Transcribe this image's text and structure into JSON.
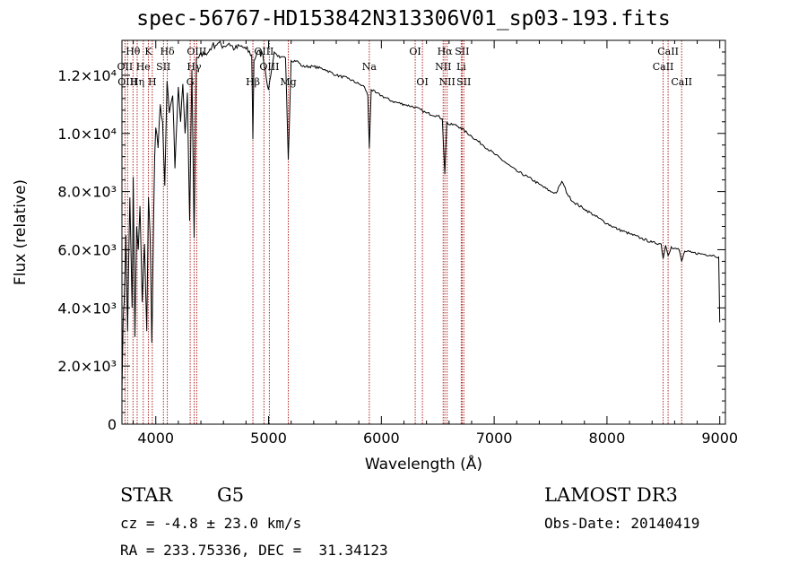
{
  "title": "spec-56767-HD153842N313306V01_sp03-193.fits",
  "info": {
    "class": "STAR",
    "subclass": "G5",
    "survey": "LAMOST DR3",
    "cz": "cz = -4.8 ± 23.0 km/s",
    "obs_date": "Obs-Date: 20140419",
    "radec": "RA = 233.75336, DEC =  31.34123"
  },
  "colors": {
    "line_marker": "#b22222",
    "spectrum": "#000000",
    "axis": "#000000"
  },
  "chart_data": {
    "type": "line",
    "title": "spec-56767-HD153842N313306V01_sp03-193.fits",
    "xlabel": "Wavelength (Å)",
    "ylabel": "Flux (relative)",
    "xlim": [
      3700,
      9050
    ],
    "ylim": [
      0,
      13200
    ],
    "x_ticks": [
      4000,
      5000,
      6000,
      7000,
      8000,
      9000
    ],
    "y_ticks": [
      {
        "value": 0,
        "label": "0"
      },
      {
        "value": 2000,
        "label": "2.0×10³"
      },
      {
        "value": 4000,
        "label": "4.0×10³"
      },
      {
        "value": 6000,
        "label": "6.0×10³"
      },
      {
        "value": 8000,
        "label": "8.0×10³"
      },
      {
        "value": 10000,
        "label": "1.0×10⁴"
      },
      {
        "value": 12000,
        "label": "1.2×10⁴"
      }
    ],
    "series": [
      {
        "name": "spectrum",
        "x": [
          3700,
          3710,
          3720,
          3735,
          3750,
          3770,
          3790,
          3800,
          3815,
          3830,
          3845,
          3860,
          3880,
          3900,
          3920,
          3935,
          3950,
          3965,
          3975,
          3990,
          4000,
          4020,
          4040,
          4060,
          4080,
          4100,
          4120,
          4150,
          4170,
          4200,
          4220,
          4240,
          4260,
          4280,
          4300,
          4320,
          4340,
          4360,
          4380,
          4420,
          4450,
          4480,
          4500,
          4550,
          4600,
          4650,
          4700,
          4750,
          4800,
          4850,
          4861,
          4870,
          4900,
          4950,
          5000,
          5050,
          5100,
          5150,
          5175,
          5200,
          5250,
          5300,
          5400,
          5500,
          5600,
          5700,
          5800,
          5850,
          5880,
          5893,
          5910,
          5950,
          6000,
          6100,
          6200,
          6300,
          6400,
          6500,
          6540,
          6563,
          6580,
          6600,
          6650,
          6700,
          6800,
          6900,
          7000,
          7100,
          7200,
          7300,
          7400,
          7500,
          7550,
          7600,
          7620,
          7650,
          7700,
          7800,
          7900,
          8000,
          8100,
          8200,
          8300,
          8400,
          8480,
          8498,
          8520,
          8542,
          8570,
          8600,
          8640,
          8662,
          8690,
          8750,
          8850,
          8950,
          8990,
          9000
        ],
        "y": [
          1100,
          3500,
          4200,
          6500,
          3200,
          7800,
          4000,
          8500,
          3000,
          6800,
          6000,
          7500,
          4200,
          6200,
          3200,
          7800,
          6500,
          2800,
          5500,
          9200,
          10200,
          9500,
          11000,
          10400,
          8200,
          11800,
          10700,
          11300,
          8800,
          11600,
          10400,
          11700,
          10000,
          11400,
          7000,
          12200,
          6400,
          12600,
          12600,
          12800,
          12700,
          12900,
          13000,
          13100,
          13000,
          13100,
          12900,
          13000,
          12900,
          12700,
          9800,
          12500,
          12800,
          12700,
          11500,
          12800,
          12600,
          12600,
          9100,
          12500,
          12500,
          12300,
          12300,
          12200,
          12000,
          11900,
          11700,
          11600,
          11300,
          9500,
          11500,
          11400,
          11300,
          11100,
          11000,
          10900,
          10700,
          10600,
          10500,
          8600,
          10400,
          10300,
          10300,
          10200,
          9900,
          9600,
          9300,
          9000,
          8700,
          8500,
          8250,
          8000,
          7950,
          8350,
          8200,
          7900,
          7650,
          7400,
          7150,
          6900,
          6700,
          6550,
          6400,
          6250,
          6200,
          5700,
          6150,
          5800,
          6100,
          6050,
          6000,
          5600,
          5950,
          5900,
          5850,
          5800,
          5750,
          3500
        ]
      }
    ],
    "emission_lines": [
      {
        "name": "Hθ",
        "wavelength": 3798,
        "row": 0
      },
      {
        "name": "OII",
        "wavelength": 3727,
        "row": 1
      },
      {
        "name": "OIII",
        "wavelength": 3750,
        "row": 2
      },
      {
        "name": "He",
        "wavelength": 3889,
        "row": 1
      },
      {
        "name": "Hη",
        "wavelength": 3835,
        "row": 2
      },
      {
        "name": "K",
        "wavelength": 3934,
        "row": 0
      },
      {
        "name": "H",
        "wavelength": 3969,
        "row": 2
      },
      {
        "name": "SII",
        "wavelength": 4068,
        "row": 1
      },
      {
        "name": "Hδ",
        "wavelength": 4102,
        "row": 0
      },
      {
        "name": "OIII",
        "wavelength": 4363,
        "row": 0
      },
      {
        "name": "Hγ",
        "wavelength": 4340,
        "row": 1
      },
      {
        "name": "G",
        "wavelength": 4305,
        "row": 2
      },
      {
        "name": "OIII",
        "wavelength": 4959,
        "row": 0
      },
      {
        "name": "Hβ",
        "wavelength": 4861,
        "row": 2
      },
      {
        "name": "OIII",
        "wavelength": 5007,
        "row": 1
      },
      {
        "name": "Mg",
        "wavelength": 5175,
        "row": 2
      },
      {
        "name": "Na",
        "wavelength": 5893,
        "row": 1
      },
      {
        "name": "OI",
        "wavelength": 6300,
        "row": 0
      },
      {
        "name": "OI",
        "wavelength": 6364,
        "row": 2
      },
      {
        "name": "Hα",
        "wavelength": 6563,
        "row": 0
      },
      {
        "name": "NII",
        "wavelength": 6548,
        "row": 1
      },
      {
        "name": "NII",
        "wavelength": 6583,
        "row": 2
      },
      {
        "name": "SII",
        "wavelength": 6716,
        "row": 0
      },
      {
        "name": "Li",
        "wavelength": 6708,
        "row": 1
      },
      {
        "name": "SII",
        "wavelength": 6731,
        "row": 2
      },
      {
        "name": "CaII",
        "wavelength": 8542,
        "row": 0
      },
      {
        "name": "CaII",
        "wavelength": 8498,
        "row": 1
      },
      {
        "name": "CaII",
        "wavelength": 8662,
        "row": 2
      }
    ]
  }
}
